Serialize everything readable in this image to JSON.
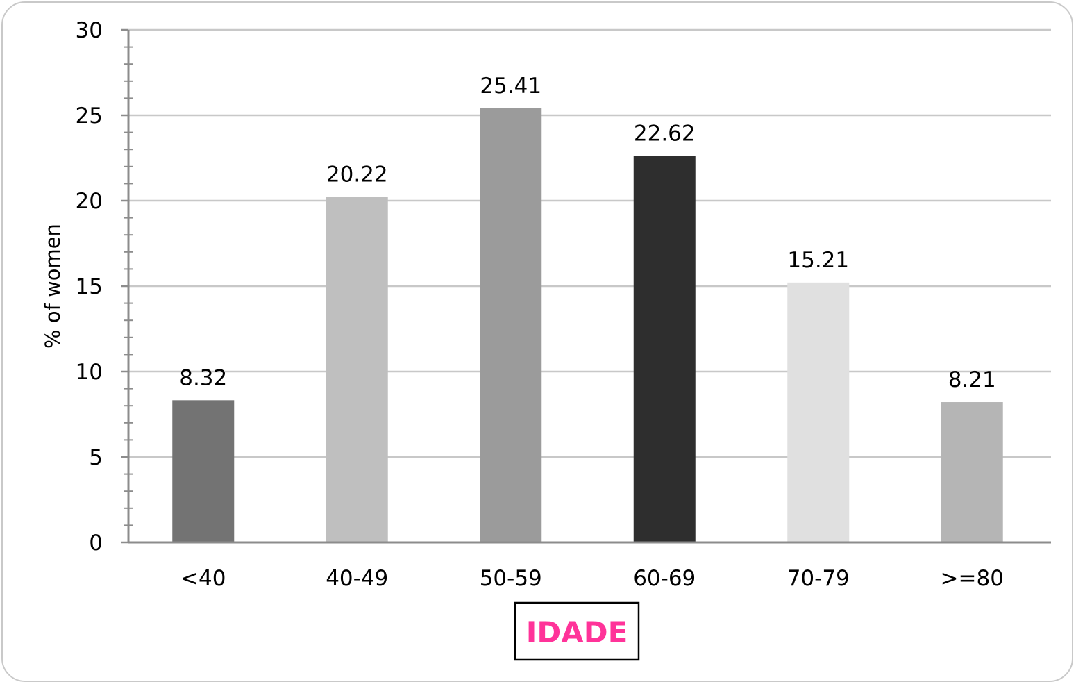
{
  "chart_data": {
    "type": "bar",
    "categories": [
      "<40",
      "40-49",
      "50-59",
      "60-69",
      "70-79",
      ">=80"
    ],
    "values": [
      8.32,
      20.22,
      25.41,
      22.62,
      15.21,
      8.21
    ],
    "data_labels": [
      "8.32",
      "20.22",
      "25.41",
      "22.62",
      "15.21",
      "8.21"
    ],
    "bar_colors": [
      "#737373",
      "#bfbfbf",
      "#9b9b9b",
      "#2e2e2e",
      "#e0e0e0",
      "#b5b5b5"
    ],
    "ylabel": "% of women",
    "xlabel": "IDADE",
    "xlabel_color": "#ff3399",
    "ylim": [
      0,
      30
    ],
    "y_ticks": [
      "0",
      "5",
      "10",
      "15",
      "20",
      "25",
      "30"
    ],
    "grid": "horizontal",
    "legend": "none",
    "gridline_color": "#c8c8c8",
    "axis_color": "#8c8c8c"
  }
}
